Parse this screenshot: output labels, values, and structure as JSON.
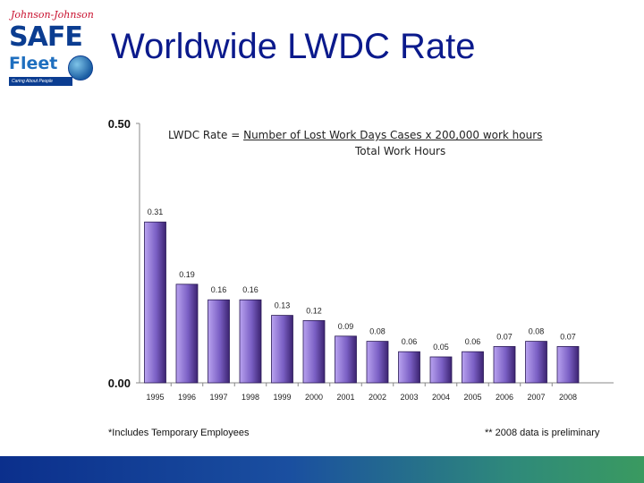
{
  "logo": {
    "brand_top": "Johnson-Johnson",
    "brand_safe": "SAFE",
    "brand_fleet": "Fleet",
    "tagline": "Caring About People",
    "colors": {
      "navy": "#0b3d91",
      "red": "#c8102e",
      "blue": "#1f6fbf"
    }
  },
  "title": "Worldwide LWDC Rate",
  "formula": {
    "prefix": "LWDC Rate = ",
    "numerator": "Number of Lost Work Days Cases x 200,000 work hours",
    "denominator": "Total Work Hours"
  },
  "footnotes": {
    "left": "*Includes Temporary Employees",
    "right": "** 2008 data is preliminary"
  },
  "chart_data": {
    "type": "bar",
    "categories": [
      "1995",
      "1996",
      "1997",
      "1998",
      "1999",
      "2000",
      "2001",
      "2002",
      "2003",
      "2004",
      "2005",
      "2006",
      "2007",
      "2008"
    ],
    "values": [
      0.31,
      0.19,
      0.16,
      0.16,
      0.13,
      0.12,
      0.09,
      0.08,
      0.06,
      0.05,
      0.06,
      0.07,
      0.08,
      0.07
    ],
    "value_labels": [
      "0.31",
      "0.19",
      "0.16",
      "0.16",
      "0.13",
      "0.12",
      "0.09",
      "0.08",
      "0.06",
      "0.05",
      "0.06",
      "0.07",
      "0.08",
      "0.07"
    ],
    "y_tick_labels": [
      "0.50",
      "0.00"
    ],
    "ylim": [
      0,
      0.5
    ],
    "grid": false,
    "bar_color": "#7a5fc4"
  }
}
